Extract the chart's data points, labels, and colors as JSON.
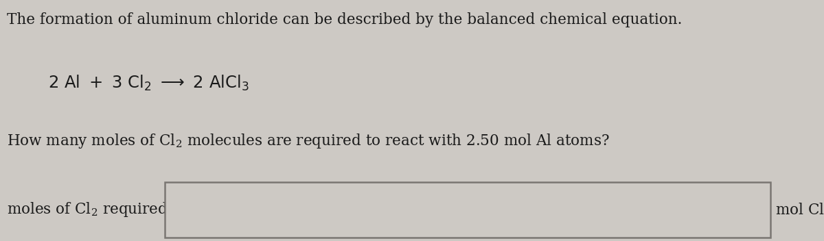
{
  "background_color": "#cdc9c4",
  "text_color": "#1a1a1a",
  "line1": "The formation of aluminum chloride can be described by the balanced chemical equation.",
  "font_size_main": 15.5,
  "font_size_eq": 17.5,
  "font_size_label": 15.5
}
